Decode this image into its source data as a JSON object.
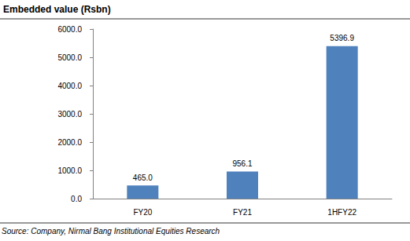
{
  "chart_data": {
    "type": "bar",
    "title": "Embedded value (Rsbn)",
    "categories": [
      "FY20",
      "FY21",
      "1HFY22"
    ],
    "values": [
      465.0,
      956.1,
      5396.9
    ],
    "value_labels": [
      "465.0",
      "956.1",
      "5396.9"
    ],
    "data_labels": true,
    "color": "#4f81bd",
    "ylim": [
      0,
      6000
    ],
    "yticks": [
      {
        "value": 0,
        "label": "0.0"
      },
      {
        "value": 1000,
        "label": "1000.0"
      },
      {
        "value": 2000,
        "label": "2000.0"
      },
      {
        "value": 3000,
        "label": "3000.0"
      },
      {
        "value": 4000,
        "label": "4000.0"
      },
      {
        "value": 5000,
        "label": "5000.0"
      },
      {
        "value": 6000,
        "label": "6000.0"
      }
    ],
    "grid": false,
    "annotations": [
      "Source: Company, Nirmal Bang Institutional Equities Research"
    ]
  }
}
